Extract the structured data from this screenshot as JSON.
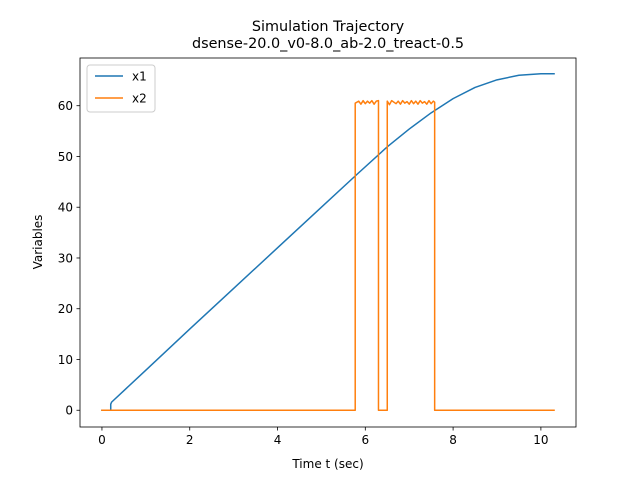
{
  "chart_data": {
    "type": "line",
    "title": "Simulation Trajectory",
    "subtitle": "dsense-20.0_v0-8.0_ab-2.0_treact-0.5",
    "xlabel": "Time t (sec)",
    "ylabel": "Variables",
    "xlim": [
      -0.5,
      10.8
    ],
    "ylim": [
      -3.3,
      69.4
    ],
    "xticks": [
      0,
      2,
      4,
      6,
      8,
      10
    ],
    "yticks": [
      0,
      10,
      20,
      30,
      40,
      50,
      60
    ],
    "grid": false,
    "legend_position": "top-left",
    "series": [
      {
        "name": "x1",
        "color": "#1f77b4",
        "x": [
          0,
          0.2,
          0.2,
          0.22,
          1,
          2,
          3,
          4,
          5,
          5.8,
          6.5,
          7,
          7.5,
          8,
          8.5,
          9,
          9.5,
          10,
          10.3
        ],
        "y": [
          0,
          0,
          1.2,
          1.6,
          7.9,
          16,
          24,
          32,
          40,
          46.4,
          51.9,
          55.4,
          58.6,
          61.4,
          63.6,
          65.1,
          66,
          66.3,
          66.3
        ]
      },
      {
        "name": "x2",
        "color": "#ff7f0e",
        "x": [
          0,
          5.77,
          5.77,
          5.85,
          5.9,
          5.95,
          6.0,
          6.05,
          6.1,
          6.15,
          6.2,
          6.25,
          6.3,
          6.3,
          6.5,
          6.5,
          6.55,
          6.6,
          6.7,
          6.75,
          6.8,
          6.85,
          6.9,
          6.95,
          7.0,
          7.05,
          7.1,
          7.15,
          7.2,
          7.25,
          7.3,
          7.35,
          7.4,
          7.45,
          7.5,
          7.55,
          7.58,
          7.58,
          10.3
        ],
        "y": [
          0,
          0,
          60.5,
          60.9,
          60.3,
          61.0,
          60.4,
          60.9,
          60.5,
          61.0,
          60.3,
          60.9,
          61.0,
          0,
          0,
          60.9,
          60.2,
          61.0,
          60.4,
          60.9,
          60.3,
          61.0,
          60.5,
          60.8,
          60.3,
          61.0,
          60.4,
          60.9,
          60.3,
          61.0,
          60.5,
          60.8,
          60.3,
          61.0,
          60.4,
          60.9,
          60.7,
          0,
          0
        ]
      }
    ]
  }
}
